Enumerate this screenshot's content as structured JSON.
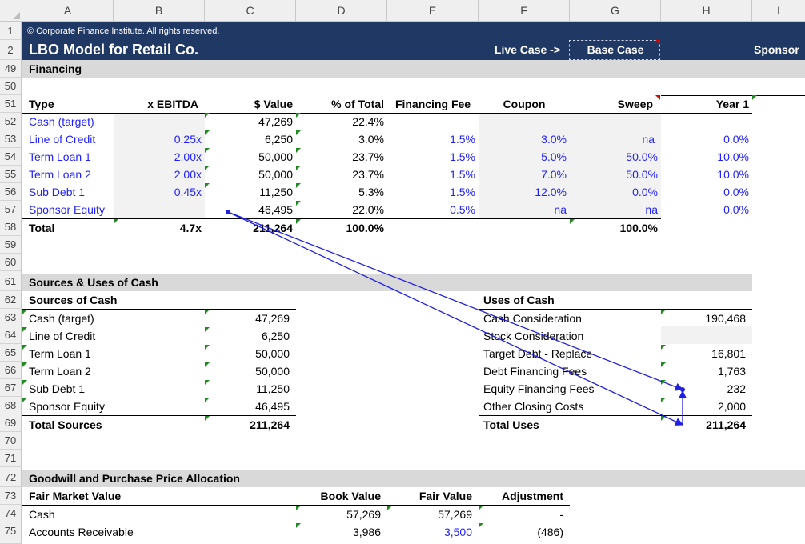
{
  "columns": [
    "A",
    "B",
    "C",
    "D",
    "E",
    "F",
    "G",
    "H",
    "I"
  ],
  "rows": [
    "1",
    "2",
    "49",
    "50",
    "51",
    "52",
    "53",
    "54",
    "55",
    "56",
    "57",
    "58",
    "59",
    "60",
    "61",
    "62",
    "63",
    "64",
    "65",
    "66",
    "67",
    "68",
    "69",
    "70",
    "71",
    "72",
    "73",
    "74",
    "75"
  ],
  "header": {
    "copyright": "© Corporate Finance Institute. All rights reserved.",
    "title": "LBO Model for Retail Co.",
    "live_case_label": "Live Case ->",
    "live_case_value": "Base Case",
    "sponsor": "Sponsor"
  },
  "financing": {
    "section_title": "Financing",
    "col_headers": {
      "type": "Type",
      "x_ebitda": "x EBITDA",
      "value": "$ Value",
      "pct_total": "% of Total",
      "fee": "Financing Fee",
      "coupon": "Coupon",
      "sweep": "Sweep",
      "year1": "Year 1"
    },
    "rows": [
      {
        "type": "Cash (target)",
        "x_ebitda": "",
        "value": "47,269",
        "pct_total": "22.4%",
        "fee": "",
        "coupon": "",
        "sweep": "",
        "year1": ""
      },
      {
        "type": "Line of Credit",
        "x_ebitda": "0.25x",
        "value": "6,250",
        "pct_total": "3.0%",
        "fee": "1.5%",
        "coupon": "3.0%",
        "sweep": "na",
        "year1": "0.0%"
      },
      {
        "type": "Term Loan 1",
        "x_ebitda": "2.00x",
        "value": "50,000",
        "pct_total": "23.7%",
        "fee": "1.5%",
        "coupon": "5.0%",
        "sweep": "50.0%",
        "year1": "10.0%"
      },
      {
        "type": "Term Loan 2",
        "x_ebitda": "2.00x",
        "value": "50,000",
        "pct_total": "23.7%",
        "fee": "1.5%",
        "coupon": "7.0%",
        "sweep": "50.0%",
        "year1": "10.0%"
      },
      {
        "type": "Sub Debt 1",
        "x_ebitda": "0.45x",
        "value": "11,250",
        "pct_total": "5.3%",
        "fee": "1.5%",
        "coupon": "12.0%",
        "sweep": "0.0%",
        "year1": "0.0%"
      },
      {
        "type": "Sponsor Equity",
        "x_ebitda": "",
        "value": "46,495",
        "pct_total": "22.0%",
        "fee": "0.5%",
        "coupon": "na",
        "sweep": "na",
        "year1": "0.0%"
      }
    ],
    "total": {
      "type": "Total",
      "x_ebitda": "4.7x",
      "value": "211,264",
      "pct_total": "100.0%",
      "sweep": "100.0%"
    }
  },
  "sources_uses": {
    "section_title": "Sources & Uses of Cash",
    "sources_title": "Sources of Cash",
    "uses_title": "Uses of Cash",
    "sources": [
      {
        "label": "Cash (target)",
        "value": "47,269"
      },
      {
        "label": "Line of Credit",
        "value": "6,250"
      },
      {
        "label": "Term Loan 1",
        "value": "50,000"
      },
      {
        "label": "Term Loan 2",
        "value": "50,000"
      },
      {
        "label": "Sub Debt 1",
        "value": "11,250"
      },
      {
        "label": "Sponsor Equity",
        "value": "46,495"
      }
    ],
    "uses": [
      {
        "label": "Cash Consideration",
        "value": "190,468"
      },
      {
        "label": "Stock Consideration",
        "value": ""
      },
      {
        "label": "Target Debt - Replace",
        "value": "16,801"
      },
      {
        "label": "Debt Financing Fees",
        "value": "1,763"
      },
      {
        "label": "Equity Financing Fees",
        "value": "232"
      },
      {
        "label": "Other Closing Costs",
        "value": "2,000"
      }
    ],
    "total_sources_label": "Total Sources",
    "total_sources_value": "211,264",
    "total_uses_label": "Total Uses",
    "total_uses_value": "211,264"
  },
  "goodwill": {
    "section_title": "Goodwill and Purchase Price Allocation",
    "fmv_label": "Fair Market Value",
    "book_value": "Book Value",
    "fair_value": "Fair Value",
    "adjustment": "Adjustment",
    "rows": [
      {
        "label": "Cash",
        "book": "57,269",
        "fair": "57,269",
        "adj": "-"
      },
      {
        "label": "Accounts Receivable",
        "book": "3,986",
        "fair": "3,500",
        "adj": "(486)"
      }
    ]
  },
  "colors": {
    "navy": "#1f3864",
    "input_blue": "#1f1fff",
    "section_gray": "#d9d9d9",
    "trace_arrow": "#2020e0"
  }
}
